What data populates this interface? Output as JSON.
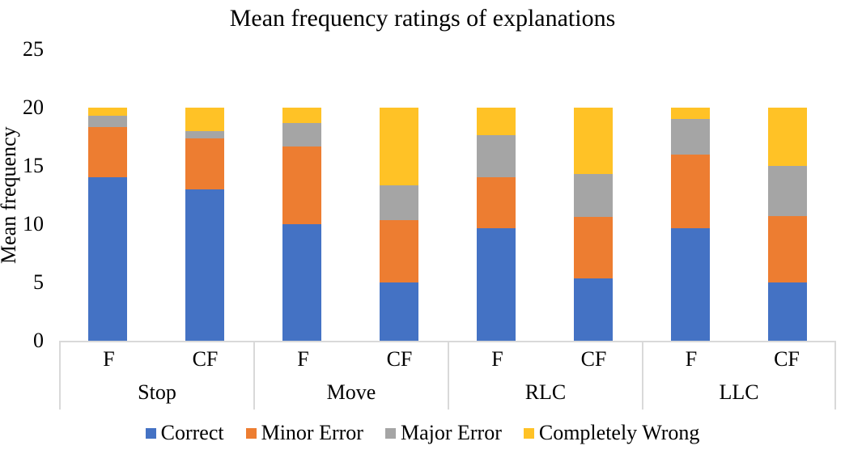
{
  "chart_data": {
    "type": "bar",
    "stacked": true,
    "title": "Mean frequency ratings of explanations",
    "xlabel": "",
    "ylabel": "Mean frequency",
    "ylim": [
      0,
      25
    ],
    "yticks": [
      0,
      5,
      10,
      15,
      20,
      25
    ],
    "grid": false,
    "legend_position": "bottom",
    "groups": [
      "Stop",
      "Move",
      "RLC",
      "LLC"
    ],
    "bar_labels": [
      "F",
      "CF"
    ],
    "categories": [
      "Stop F",
      "Stop CF",
      "Move F",
      "Move CF",
      "RLC F",
      "RLC CF",
      "LLC F",
      "LLC CF"
    ],
    "series": [
      {
        "name": "Correct",
        "color": "#4472C4",
        "values": [
          14,
          13,
          10,
          5,
          9.67,
          5.33,
          9.67,
          5
        ]
      },
      {
        "name": "Minor Error",
        "color": "#ED7D31",
        "values": [
          4.33,
          4.33,
          6.67,
          5.33,
          4.33,
          5.33,
          6.33,
          5.67
        ]
      },
      {
        "name": "Major Error",
        "color": "#A5A5A5",
        "values": [
          1,
          0.67,
          2,
          3,
          3.67,
          3.67,
          3,
          4.33
        ]
      },
      {
        "name": "Completely Wrong",
        "color": "#FFC226",
        "values": [
          0.67,
          2,
          1.33,
          6.67,
          2.33,
          5.67,
          1,
          5
        ]
      }
    ],
    "bar_total": 20
  },
  "colors": {
    "axis_line": "#D9D9D9",
    "text": "#000000",
    "background": "#FFFFFF"
  }
}
